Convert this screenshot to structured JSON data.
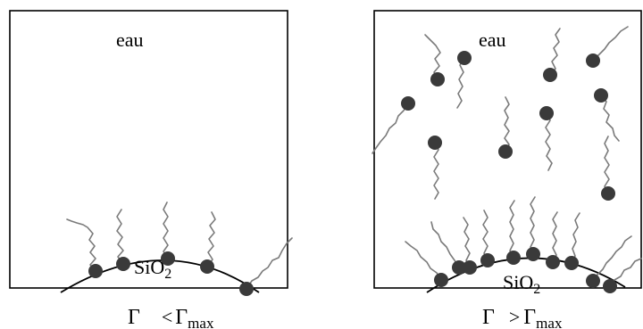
{
  "panels": [
    {
      "solvent_label": "eau",
      "particle_label_main": "SiO",
      "particle_label_sub": "2",
      "condition": {
        "symbol": "Γ",
        "relation": "<",
        "symbol_right": "Γ",
        "subscript": "max"
      }
    },
    {
      "solvent_label": "eau",
      "particle_label_main": "SiO",
      "particle_label_sub": "2",
      "condition": {
        "symbol": "Γ",
        "relation": ">",
        "symbol_right": "Γ",
        "subscript": "max"
      }
    }
  ],
  "colors": {
    "surfactant_head": "#3a3a3a",
    "surfactant_tail": "#7a7a7a",
    "outline": "#000000"
  }
}
